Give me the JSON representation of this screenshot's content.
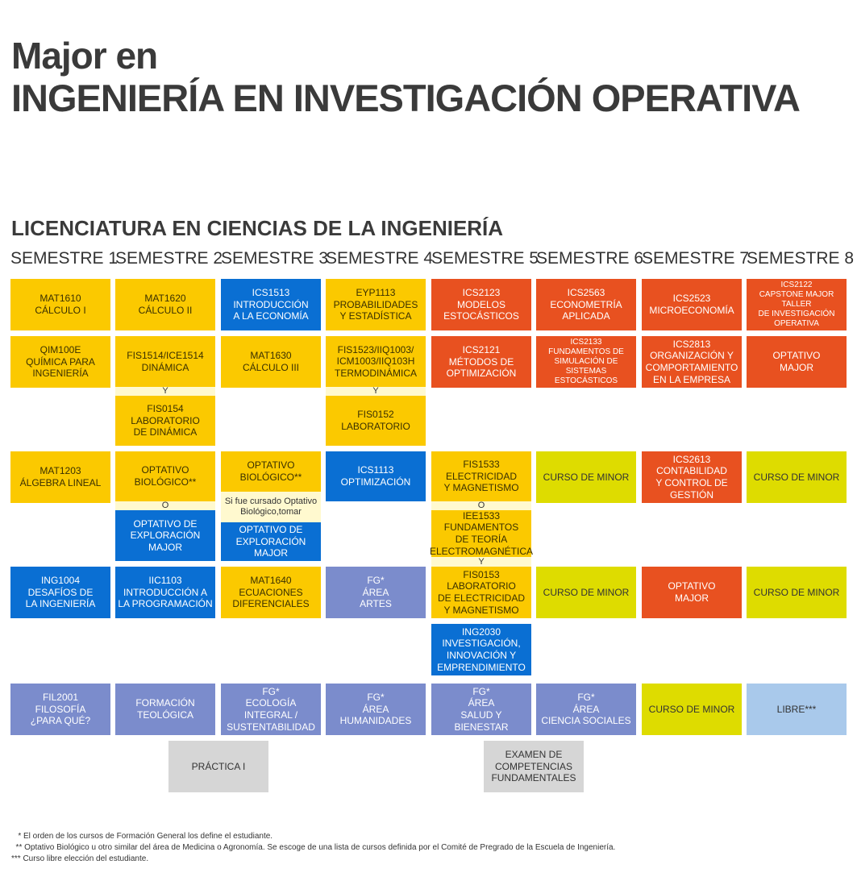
{
  "header": {
    "line1": "Major en",
    "line2": "INGENIERÍA EN INVESTIGACIÓN OPERATIVA",
    "subtitle": "LICENCIATURA EN CIENCIAS DE LA INGENIERÍA"
  },
  "semesters": [
    "SEMESTRE 1",
    "SEMESTRE 2",
    "SEMESTRE 3",
    "SEMESTRE 4",
    "SEMESTRE 5",
    "SEMESTRE 6",
    "SEMESTRE 7",
    "SEMESTRE 8"
  ],
  "colors": {
    "yellow": "#fbc900",
    "blue": "#0a6fd3",
    "orange": "#e85120",
    "purple": "#7b8ccc",
    "lime": "#dedc00",
    "gray": "#d6d6d6",
    "lightblue": "#a9c9eb"
  },
  "courses": {
    "s1_r1": "MAT1610\nCÁLCULO I",
    "s1_r2": "QIM100E\nQUÍMICA PARA\nINGENIERÍA",
    "s1_r3": "MAT1203\nÁLGEBRA LINEAL",
    "s1_r4": "ING1004\nDESAFÍOS DE\nLA INGENIERÍA",
    "s1_r5": "FIL2001\nFILOSOFÍA\n¿PARA QUÉ?",
    "s2_r1": "MAT1620\nCÁLCULO II",
    "s2_r2a": "FIS1514/ICE1514\nDINÁMICA",
    "s2_r2b": "FIS0154\nLABORATORIO\nDE DINÁMICA",
    "s2_r3a": "OPTATIVO\nBIOLÓGICO**",
    "s2_r3b": "OPTATIVO DE\nEXPLORACIÓN\nMAJOR",
    "s2_r4": "IIC1103\nINTRODUCCIÓN A\nLA PROGRAMACIÓN",
    "s2_r5": "FORMACIÓN\nTEOLÓGICA",
    "s3_r1": "ICS1513\nINTRODUCCIÓN\nA LA ECONOMÍA",
    "s3_r2": "MAT1630\nCÁLCULO III",
    "s3_r3a": "OPTATIVO\nBIOLÓGICO**",
    "s3_r3note": "Si fue cursado Optativo\nBiológico,tomar",
    "s3_r3b": "OPTATIVO DE\nEXPLORACIÓN\nMAJOR",
    "s3_r4": "MAT1640\nECUACIONES\nDIFERENCIALES",
    "s3_r5": "FG*\nECOLOGÍA INTEGRAL /\nSUSTENTABILIDAD",
    "s4_r1": "EYP1113\nPROBABILIDADES\nY ESTADÍSTICA",
    "s4_r2a": "FIS1523/IIQ1003/\nICM1003/IIQ103H\nTERMODINÁMICA",
    "s4_r2b": "FIS0152\nLABORATORIO",
    "s4_r3": "ICS1113\nOPTIMIZACIÓN",
    "s4_r4": "FG*\nÁREA\nARTES",
    "s4_r5": "FG*\nÁREA\nHUMANIDADES",
    "s5_r1": "ICS2123\nMODELOS\nESTOCÁSTICOS",
    "s5_r2": "ICS2121\nMÉTODOS DE\nOPTIMIZACIÓN",
    "s5_r3a": "FIS1533\nELECTRICIDAD\nY MAGNETISMO",
    "s5_r3b": "IEE1533\nFUNDAMENTOS\nDE TEORÍA\nELECTROMAGNÉTICA",
    "s5_r4a": "FIS0153\nLABORATORIO\nDE ELECTRICIDAD\nY MAGNETISMO",
    "s5_r4b": "ING2030\nINVESTIGACIÓN,\nINNOVACIÓN Y\nEMPRENDIMIENTO",
    "s5_r5": "FG*\nÁREA\nSALUD Y BIENESTAR",
    "s6_r1": "ICS2563\nECONOMETRÍA\nAPLICADA",
    "s6_r2": "ICS2133\nFUNDAMENTOS DE\nSIMULACIÓN DE\nSISTEMAS ESTOCÁSTICOS",
    "s6_r3": "CURSO DE MINOR",
    "s6_r4": "CURSO DE MINOR",
    "s6_r5": "FG*\nÁREA\nCIENCIA SOCIALES",
    "s7_r1": "ICS2523\nMICROECONOMÍA",
    "s7_r2": "ICS2813\nORGANIZACIÓN Y\nCOMPORTAMIENTO\nEN LA EMPRESA",
    "s7_r3": "ICS2613\nCONTABILIDAD\nY CONTROL DE\nGESTIÓN",
    "s7_r4": "OPTATIVO\nMAJOR",
    "s7_r5": "CURSO DE MINOR",
    "s8_r1": "ICS2122\nCAPSTONE MAJOR TALLER\nDE INVESTIGACIÓN\nOPERATIVA",
    "s8_r2": "OPTATIVO\nMAJOR",
    "s8_r3": "CURSO DE MINOR",
    "s8_r4": "CURSO DE MINOR",
    "s8_r5": "LIBRE***",
    "practica": "PRÁCTICA I",
    "examen": "EXAMEN DE\nCOMPETENCIAS\nFUNDAMENTALES"
  },
  "connectors": {
    "y": "Y",
    "o": "O"
  },
  "footnotes": [
    "   * El orden de los cursos de Formación General los define el estudiante.",
    "  ** Optativo Biológico u otro similar del área de Medicina o Agronomía. Se escoge de una lista de cursos definida por el Comité de Pregrado de la Escuela de Ingeniería.",
    "*** Curso libre elección del estudiante."
  ]
}
